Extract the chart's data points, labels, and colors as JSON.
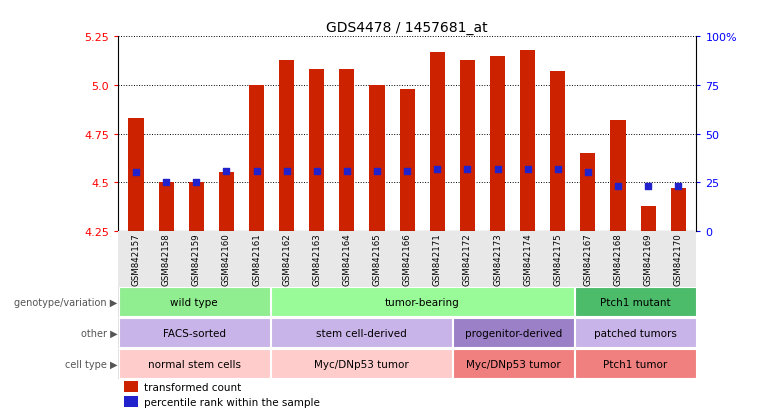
{
  "title": "GDS4478 / 1457681_at",
  "samples": [
    "GSM842157",
    "GSM842158",
    "GSM842159",
    "GSM842160",
    "GSM842161",
    "GSM842162",
    "GSM842163",
    "GSM842164",
    "GSM842165",
    "GSM842166",
    "GSM842171",
    "GSM842172",
    "GSM842173",
    "GSM842174",
    "GSM842175",
    "GSM842167",
    "GSM842168",
    "GSM842169",
    "GSM842170"
  ],
  "bar_values": [
    4.83,
    4.5,
    4.5,
    4.55,
    5.0,
    5.13,
    5.08,
    5.08,
    5.0,
    4.98,
    5.17,
    5.13,
    5.15,
    5.18,
    5.07,
    4.65,
    4.82,
    4.38,
    4.47
  ],
  "percentile_values": [
    4.55,
    4.5,
    4.5,
    4.56,
    4.56,
    4.56,
    4.56,
    4.56,
    4.56,
    4.56,
    4.57,
    4.57,
    4.57,
    4.57,
    4.57,
    4.55,
    4.48,
    4.48,
    4.48
  ],
  "y_min": 4.25,
  "y_max": 5.25,
  "y_ticks": [
    4.25,
    4.5,
    4.75,
    5.0,
    5.25
  ],
  "right_y_ticks": [
    0,
    25,
    50,
    75,
    100
  ],
  "right_y_labels": [
    "0",
    "25",
    "50",
    "75",
    "100%"
  ],
  "bar_color": "#CC2200",
  "dot_color": "#2222CC",
  "background_color": "#FFFFFF",
  "annotation_rows": [
    {
      "label": "genotype/variation",
      "groups": [
        {
          "text": "wild type",
          "start": 0,
          "end": 4,
          "color": "#90EE90"
        },
        {
          "text": "tumor-bearing",
          "start": 5,
          "end": 14,
          "color": "#98FB98"
        },
        {
          "text": "Ptch1 mutant",
          "start": 15,
          "end": 18,
          "color": "#4CBB6A"
        }
      ]
    },
    {
      "label": "other",
      "groups": [
        {
          "text": "FACS-sorted",
          "start": 0,
          "end": 4,
          "color": "#C8B4E8"
        },
        {
          "text": "stem cell-derived",
          "start": 5,
          "end": 10,
          "color": "#C8B4E8"
        },
        {
          "text": "progenitor-derived",
          "start": 11,
          "end": 14,
          "color": "#9B80C8"
        },
        {
          "text": "patched tumors",
          "start": 15,
          "end": 18,
          "color": "#C8B4E8"
        }
      ]
    },
    {
      "label": "cell type",
      "groups": [
        {
          "text": "normal stem cells",
          "start": 0,
          "end": 4,
          "color": "#FFCCCC"
        },
        {
          "text": "Myc/DNp53 tumor",
          "start": 5,
          "end": 10,
          "color": "#FFCCCC"
        },
        {
          "text": "Myc/DNp53 tumor",
          "start": 11,
          "end": 14,
          "color": "#F08080"
        },
        {
          "text": "Ptch1 tumor",
          "start": 15,
          "end": 18,
          "color": "#F08080"
        }
      ]
    }
  ],
  "legend_items": [
    {
      "label": "transformed count",
      "color": "#CC2200"
    },
    {
      "label": "percentile rank within the sample",
      "color": "#2222CC"
    }
  ]
}
